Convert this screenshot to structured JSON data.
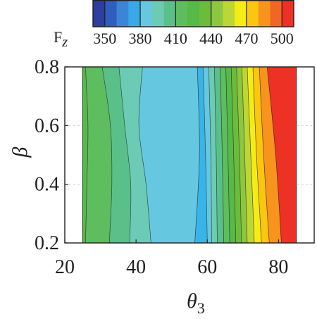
{
  "chart_data": {
    "type": "heatmap",
    "subtype": "filled-contour",
    "title": "",
    "xlabel": "θ",
    "xlabel_sub": "3",
    "ylabel": "β",
    "xlim": [
      20,
      90
    ],
    "ylim": [
      0.2,
      0.8
    ],
    "data_extent": {
      "x": [
        25,
        85
      ],
      "y": [
        0.2,
        0.8
      ]
    },
    "x_ticks": [
      "20",
      "40",
      "60",
      "80"
    ],
    "y_ticks": [
      "0.2",
      "0.4",
      "0.6",
      "0.8"
    ],
    "grid": true,
    "colorbar": {
      "label": "F",
      "label_sub": "z",
      "placement": "top",
      "ticks": [
        "350",
        "380",
        "410",
        "440",
        "470",
        "500"
      ],
      "tick_values": [
        350,
        380,
        410,
        440,
        470,
        500
      ],
      "range": [
        340,
        510
      ],
      "levels": [
        340,
        350,
        360,
        370,
        380,
        390,
        400,
        410,
        420,
        430,
        440,
        450,
        460,
        470,
        480,
        490,
        500,
        510
      ],
      "colors": [
        "#2c3f9c",
        "#2f5ec0",
        "#3a85d6",
        "#38a9e6",
        "#66c8e0",
        "#6ccbb4",
        "#5ac08a",
        "#5dbd5f",
        "#56b948",
        "#6cbc3c",
        "#8dc63f",
        "#bcd636",
        "#f5ec16",
        "#fbc60f",
        "#f7941d",
        "#f26522",
        "#ed3124"
      ]
    },
    "contour_band_boundaries": [
      {
        "level": 420,
        "points": [
          [
            25.8,
            0.2
          ],
          [
            26.2,
            0.4
          ],
          [
            26.5,
            0.6
          ],
          [
            25.8,
            0.8
          ]
        ]
      },
      {
        "level": 410,
        "points": [
          [
            32.5,
            0.2
          ],
          [
            33.2,
            0.4
          ],
          [
            32.8,
            0.6
          ],
          [
            30.5,
            0.8
          ]
        ]
      },
      {
        "level": 400,
        "points": [
          [
            38.2,
            0.2
          ],
          [
            38.5,
            0.4
          ],
          [
            36.8,
            0.6
          ],
          [
            35.2,
            0.8
          ]
        ]
      },
      {
        "level": 390,
        "points": [
          [
            44.2,
            0.2
          ],
          [
            42.8,
            0.4
          ],
          [
            40.8,
            0.6
          ],
          [
            41.8,
            0.8
          ]
        ]
      },
      {
        "level": 380,
        "points": [
          [
            56.5,
            0.2
          ],
          [
            57.8,
            0.5
          ],
          [
            57.2,
            0.8
          ]
        ]
      },
      {
        "level": 390,
        "points": [
          [
            60.0,
            0.2
          ],
          [
            59.5,
            0.5
          ],
          [
            58.8,
            0.8
          ]
        ]
      },
      {
        "level": 400,
        "points": [
          [
            61.2,
            0.2
          ],
          [
            61.0,
            0.5
          ],
          [
            60.4,
            0.8
          ]
        ]
      },
      {
        "level": 410,
        "points": [
          [
            62.8,
            0.2
          ],
          [
            62.5,
            0.5
          ],
          [
            62.0,
            0.8
          ]
        ]
      },
      {
        "level": 420,
        "points": [
          [
            64.6,
            0.2
          ],
          [
            64.2,
            0.5
          ],
          [
            63.6,
            0.8
          ]
        ]
      },
      {
        "level": 430,
        "points": [
          [
            66.3,
            0.2
          ],
          [
            65.8,
            0.5
          ],
          [
            65.2,
            0.8
          ]
        ]
      },
      {
        "level": 440,
        "points": [
          [
            68.0,
            0.2
          ],
          [
            67.4,
            0.5
          ],
          [
            66.7,
            0.8
          ]
        ]
      },
      {
        "level": 450,
        "points": [
          [
            69.6,
            0.2
          ],
          [
            69.0,
            0.5
          ],
          [
            68.2,
            0.8
          ]
        ]
      },
      {
        "level": 460,
        "points": [
          [
            71.2,
            0.2
          ],
          [
            70.5,
            0.5
          ],
          [
            69.7,
            0.8
          ]
        ]
      },
      {
        "level": 470,
        "points": [
          [
            73.2,
            0.2
          ],
          [
            72.2,
            0.5
          ],
          [
            71.2,
            0.8
          ]
        ]
      },
      {
        "level": 480,
        "points": [
          [
            75.2,
            0.2
          ],
          [
            73.8,
            0.5
          ],
          [
            72.8,
            0.8
          ]
        ]
      },
      {
        "level": 490,
        "points": [
          [
            77.4,
            0.2
          ],
          [
            75.8,
            0.5
          ],
          [
            74.6,
            0.8
          ]
        ]
      },
      {
        "level": 500,
        "points": [
          [
            80.8,
            0.2
          ],
          [
            79.2,
            0.5
          ],
          [
            76.8,
            0.8
          ]
        ]
      }
    ],
    "contour_bands": [
      {
        "value_range": [
          430,
          440
        ],
        "color": "#56b948",
        "x_from": 25,
        "x_to_boundary": 0
      },
      {
        "value_range": [
          420,
          430
        ],
        "color": "#5dbd5f"
      },
      {
        "value_range": [
          410,
          420
        ],
        "color": "#5ac08a"
      },
      {
        "value_range": [
          400,
          410
        ],
        "color": "#6ccbb4"
      },
      {
        "value_range": [
          390,
          400
        ],
        "color": "#66c8e0"
      },
      {
        "value_range": [
          380,
          390
        ],
        "color": "#38b4e8"
      },
      {
        "value_range": [
          390,
          400
        ],
        "color": "#66c8e0"
      },
      {
        "value_range": [
          400,
          410
        ],
        "color": "#6ccbb4"
      },
      {
        "value_range": [
          410,
          420
        ],
        "color": "#5ac08a"
      },
      {
        "value_range": [
          420,
          430
        ],
        "color": "#5dbd5f"
      },
      {
        "value_range": [
          430,
          440
        ],
        "color": "#56b948"
      },
      {
        "value_range": [
          440,
          450
        ],
        "color": "#6cbc3c"
      },
      {
        "value_range": [
          450,
          460
        ],
        "color": "#8dc63f"
      },
      {
        "value_range": [
          460,
          470
        ],
        "color": "#bcd636"
      },
      {
        "value_range": [
          470,
          480
        ],
        "color": "#f5ec16"
      },
      {
        "value_range": [
          480,
          490
        ],
        "color": "#fbc60f"
      },
      {
        "value_range": [
          490,
          500
        ],
        "color": "#f7941d"
      },
      {
        "value_range": [
          500,
          510
        ],
        "color": "#ed3124"
      }
    ]
  }
}
